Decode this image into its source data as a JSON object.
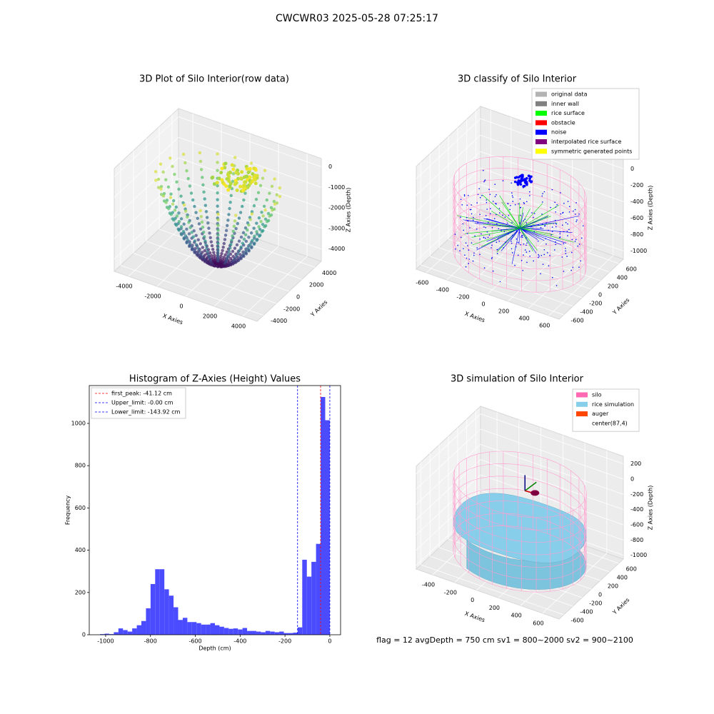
{
  "title": "CWCWR03 2025-05-28 07:25:17",
  "footer": "flag = 12  avgDepth = 750 cm  sv1 = 800~2000  sv2 = 900~2100",
  "chart_data": [
    {
      "type": "scatter3d",
      "title": "3D Plot of Silo Interior(row data)",
      "xlabel": "X Axies",
      "ylabel": "Y Axies",
      "zlabel": "Z Axies (Depth)",
      "xlim": [
        -5000,
        5000
      ],
      "ylim": [
        -5000,
        5000
      ],
      "zlim": [
        -4600,
        400
      ],
      "xticks": [
        -4000,
        -2000,
        0,
        2000,
        4000
      ],
      "yticks": [
        -4000,
        -2000,
        0,
        2000,
        4000
      ],
      "zticks": [
        0,
        -1000,
        -2000,
        -3000,
        -4000
      ]
    },
    {
      "type": "scatter3d",
      "title": "3D classify of Silo Interior",
      "xlabel": "X Axies",
      "ylabel": "Y Axies",
      "zlabel": "Z Axies (Depth)",
      "xlim": [
        -700,
        700
      ],
      "ylim": [
        -700,
        700
      ],
      "zlim": [
        -1100,
        150
      ],
      "xticks": [
        -600,
        -400,
        -200,
        0,
        200,
        400,
        600
      ],
      "yticks": [
        -600,
        -400,
        -200,
        0,
        200,
        400,
        600
      ],
      "zticks": [
        0,
        -200,
        -400,
        -600,
        -800,
        -1000
      ],
      "legend": [
        {
          "name": "original data",
          "color": "#b3b3b3"
        },
        {
          "name": "inner wall",
          "color": "#808080"
        },
        {
          "name": "rice surface",
          "color": "#00ff00"
        },
        {
          "name": "obstacle",
          "color": "#ff0000"
        },
        {
          "name": "noise",
          "color": "#0000ff"
        },
        {
          "name": "interpolated rice surface",
          "color": "#800080"
        },
        {
          "name": "symmetric generated points",
          "color": "#ffff00"
        }
      ]
    },
    {
      "type": "histogram",
      "title": "Histogram of Z-Axies (Height) Values",
      "xlabel": "Depth (cm)",
      "ylabel": "Frequency",
      "color": "#4b4bff",
      "xlim": [
        -1073,
        48
      ],
      "ylim": [
        0,
        1179
      ],
      "xticks": [
        -1000,
        -800,
        -600,
        -400,
        -200,
        0
      ],
      "yticks": [
        0,
        200,
        400,
        600,
        800,
        1000
      ],
      "bins": [
        -1025,
        -1004.5,
        -984,
        -963.5,
        -943,
        -922.5,
        -902,
        -881.5,
        -861,
        -840.5,
        -820,
        -799.5,
        -779,
        -758.5,
        -738,
        -717.5,
        -697,
        -676.5,
        -656,
        -635.5,
        -615,
        -594.5,
        -574,
        -553.5,
        -533,
        -512.5,
        -492,
        -471.5,
        -451,
        -430.5,
        -410,
        -389.5,
        -369,
        -348.5,
        -328,
        -307.5,
        -287,
        -266.5,
        -246,
        -225.5,
        -205,
        -184.5,
        -164,
        -143.5,
        -123,
        -102.5,
        -82,
        -61.5,
        -41,
        -20.5,
        0
      ],
      "values": [
        3,
        5,
        3,
        12,
        30,
        22,
        15,
        30,
        45,
        65,
        125,
        240,
        310,
        310,
        215,
        185,
        130,
        70,
        80,
        60,
        60,
        55,
        48,
        48,
        55,
        45,
        38,
        32,
        28,
        30,
        25,
        32,
        18,
        18,
        15,
        12,
        18,
        15,
        12,
        15,
        8,
        8,
        10,
        35,
        355,
        275,
        345,
        430,
        1125,
        1015
      ],
      "lines": [
        {
          "name": "first_peak: -41.12 cm",
          "value": -41.12,
          "color": "#ff0000"
        },
        {
          "name": "Upper_limit: -0.00 cm",
          "value": 0,
          "color": "#0000ff"
        },
        {
          "name": "Lower_limit: -143.92 cm",
          "value": -143.92,
          "color": "#0000ff"
        }
      ]
    },
    {
      "type": "surface3d",
      "title": "3D simulation of Silo Interior",
      "xlabel": "X Axies",
      "ylabel": "Y Axies",
      "zlabel": "Z Axies (Depth)",
      "xlim": [
        -550,
        750
      ],
      "ylim": [
        -700,
        700
      ],
      "zlim": [
        -1050,
        300
      ],
      "xticks": [
        -400,
        -200,
        0,
        200,
        400,
        600
      ],
      "yticks": [
        -600,
        -400,
        -200,
        0,
        200,
        400,
        600
      ],
      "zticks": [
        200,
        0,
        -200,
        -400,
        -600,
        -800,
        -1000
      ],
      "legend": [
        {
          "name": "silo",
          "color": "#ff69b4"
        },
        {
          "name": "rice simulation",
          "color": "#87ceeb"
        },
        {
          "name": "auger",
          "color": "#ff4500"
        },
        {
          "name": "center(87,4)",
          "color": "#ffffff"
        }
      ]
    }
  ]
}
